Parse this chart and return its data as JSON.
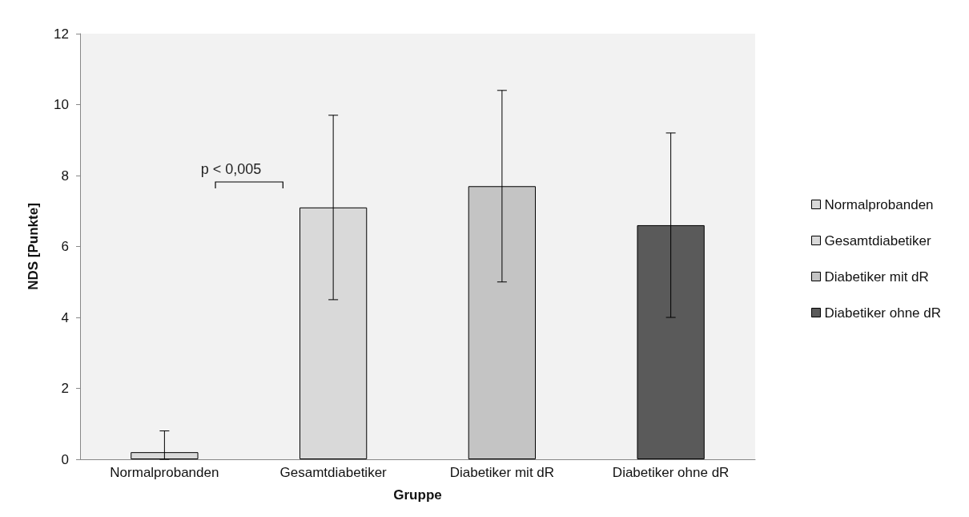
{
  "chart_data": {
    "type": "bar",
    "xlabel": "Gruppe",
    "ylabel": "NDS [Punkte]",
    "categories": [
      "Normalprobanden",
      "Gesamtdiabetiker",
      "Diabetiker mit dR",
      "Diabetiker ohne dR"
    ],
    "series": [
      {
        "name": "Normalprobanden",
        "color": "#d9d9d9",
        "values": [
          0.2,
          null,
          null,
          null
        ],
        "errors": [
          [
            0,
            0.8
          ],
          null,
          null,
          null
        ]
      },
      {
        "name": "Gesamtdiabetiker",
        "color": "#d9d9d9",
        "values": [
          null,
          7.1,
          null,
          null
        ],
        "errors": [
          null,
          2.6,
          null,
          null
        ]
      },
      {
        "name": "Diabetiker mit dR",
        "color": "#c4c4c4",
        "values": [
          null,
          null,
          7.7,
          null
        ],
        "errors": [
          null,
          null,
          2.7,
          null
        ]
      },
      {
        "name": "Diabetiker ohne dR",
        "color": "#5a5a5a",
        "values": [
          null,
          null,
          null,
          6.6
        ],
        "errors": [
          null,
          null,
          null,
          2.6
        ]
      }
    ],
    "ylim": [
      0,
      12
    ],
    "yticks": [
      0,
      2,
      4,
      6,
      8,
      10,
      12
    ],
    "grid": false,
    "legend": "right",
    "annotations": [
      "p < 0,005"
    ]
  }
}
